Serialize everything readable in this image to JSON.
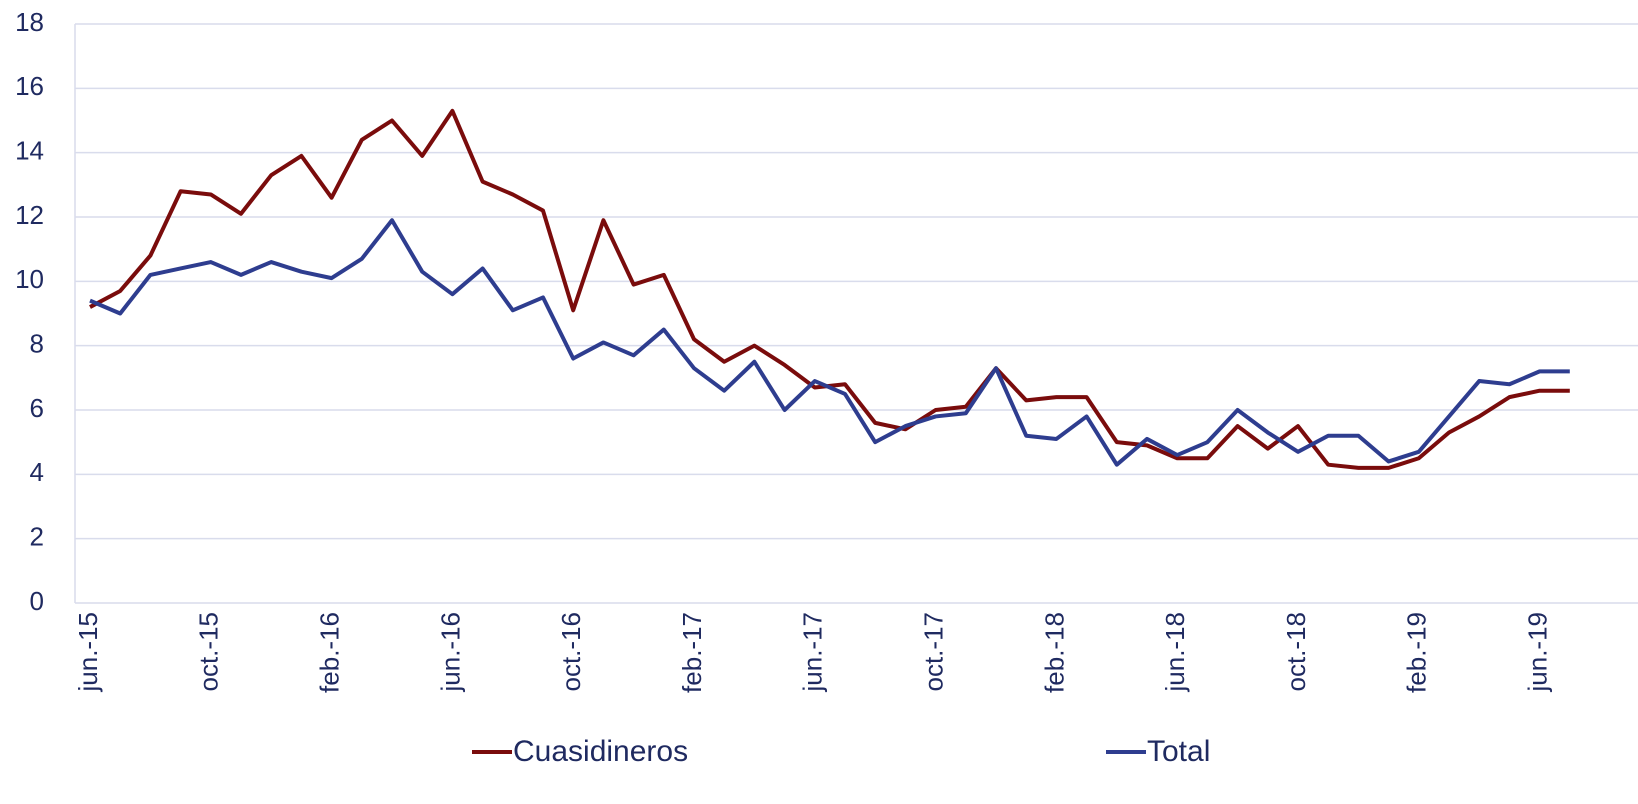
{
  "chart_data": {
    "type": "line",
    "categories": [
      "jun.-15",
      null,
      null,
      null,
      "oct.-15",
      null,
      null,
      null,
      "feb.-16",
      null,
      null,
      null,
      "jun.-16",
      null,
      null,
      null,
      "oct.-16",
      null,
      null,
      null,
      "feb.-17",
      null,
      null,
      null,
      "jun.-17",
      null,
      null,
      null,
      "oct.-17",
      null,
      null,
      null,
      "feb.-18",
      null,
      null,
      null,
      "jun.-18",
      null,
      null,
      null,
      "oct.-18",
      null,
      null,
      null,
      "feb.-19",
      null,
      null,
      null,
      "jun.-19",
      null
    ],
    "series": [
      {
        "name": "Cuasidineros",
        "color": "#7a0c0c",
        "values": [
          9.2,
          9.7,
          10.8,
          12.8,
          12.7,
          12.1,
          13.3,
          13.9,
          12.6,
          14.4,
          15.0,
          13.9,
          15.3,
          13.1,
          12.7,
          12.2,
          9.1,
          11.9,
          9.9,
          10.2,
          8.2,
          7.5,
          8.0,
          7.4,
          6.7,
          6.8,
          5.6,
          5.4,
          6.0,
          6.1,
          7.3,
          6.3,
          6.4,
          6.4,
          5.0,
          4.9,
          4.5,
          4.5,
          5.5,
          4.8,
          5.5,
          4.3,
          4.2,
          4.2,
          4.5,
          5.3,
          5.8,
          6.4,
          6.6,
          6.6
        ]
      },
      {
        "name": "Total",
        "color": "#2e3d8f",
        "values": [
          9.4,
          9.0,
          10.2,
          10.4,
          10.6,
          10.2,
          10.6,
          10.3,
          10.1,
          10.7,
          11.9,
          10.3,
          9.6,
          10.4,
          9.1,
          9.5,
          7.6,
          8.1,
          7.7,
          8.5,
          7.3,
          6.6,
          7.5,
          6.0,
          6.9,
          6.5,
          5.0,
          5.5,
          5.8,
          5.9,
          7.3,
          5.2,
          5.1,
          5.8,
          4.3,
          5.1,
          4.6,
          5.0,
          6.0,
          5.3,
          4.7,
          5.2,
          5.2,
          4.4,
          4.7,
          5.8,
          6.9,
          6.8,
          7.2,
          7.2
        ]
      }
    ],
    "ylim": [
      0,
      18
    ],
    "yticks": [
      0,
      2,
      4,
      6,
      8,
      10,
      12,
      14,
      16,
      18
    ],
    "grid": true,
    "legend": "bottom"
  }
}
